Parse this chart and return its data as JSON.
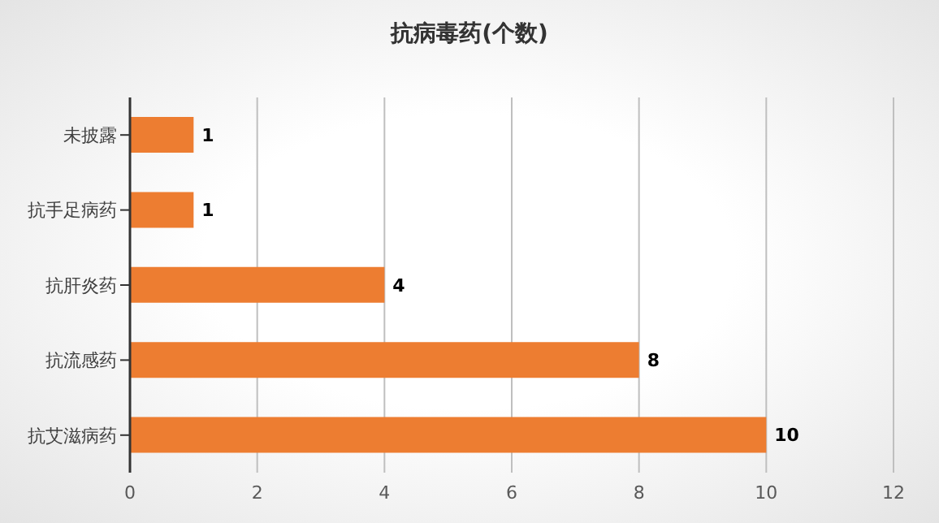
{
  "chart_data": {
    "type": "bar",
    "orientation": "horizontal",
    "title": "抗病毒药(个数)",
    "categories": [
      "未披露",
      "抗手足病药",
      "抗肝炎药",
      "抗流感药",
      "抗艾滋病药"
    ],
    "values": [
      1,
      1,
      4,
      8,
      10
    ],
    "color": "#ed7d31",
    "xlim": [
      0,
      12
    ],
    "xticks": [
      0,
      2,
      4,
      6,
      8,
      10,
      12
    ],
    "grid": "x",
    "data_labels": true
  }
}
